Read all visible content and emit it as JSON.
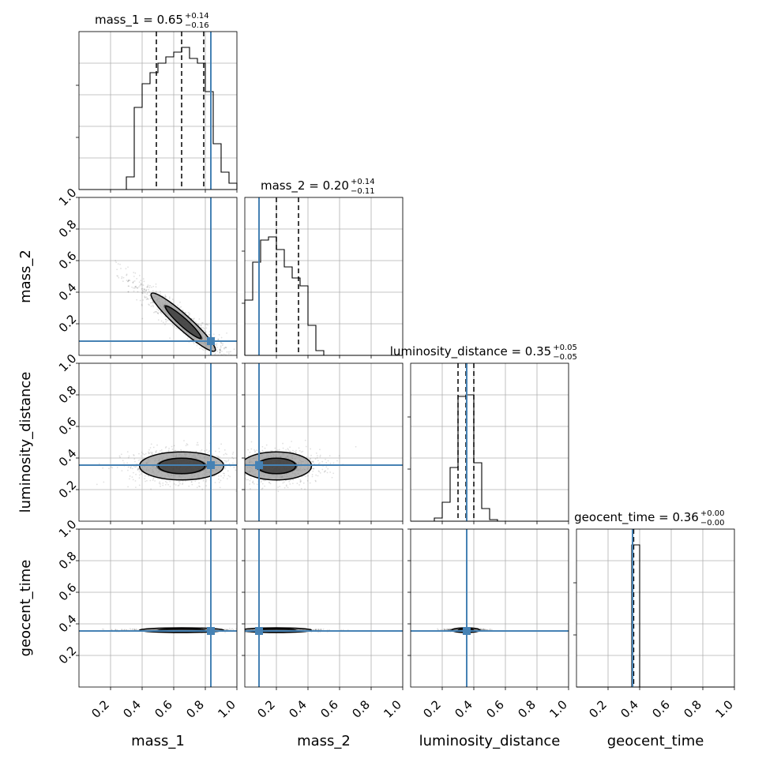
{
  "chart_data": {
    "type": "corner",
    "parameters": [
      "mass_1",
      "mass_2",
      "luminosity_distance",
      "geocent_time"
    ],
    "axis_labels": [
      "mass_1",
      "mass_2",
      "luminosity_distance",
      "geocent_time"
    ],
    "titles": [
      {
        "param": "mass_1",
        "text": "mass_1 = 0.65",
        "plus": "+0.14",
        "minus": "−0.16"
      },
      {
        "param": "mass_2",
        "text": "mass_2 = 0.20",
        "plus": "+0.14",
        "minus": "−0.11"
      },
      {
        "param": "luminosity_distance",
        "text": "luminosity_distance = 0.35",
        "plus": "+0.05",
        "minus": "−0.05"
      },
      {
        "param": "geocent_time",
        "text": "geocent_time = 0.36",
        "plus": "+0.00",
        "minus": "−0.00"
      }
    ],
    "axis_range": [
      0,
      1
    ],
    "x_tick_labels": [
      "0.2",
      "0.4",
      "0.6",
      "0.8",
      "1.0"
    ],
    "y_tick_labels": [
      "0.2",
      "0.4",
      "0.6",
      "0.8",
      "1.0"
    ],
    "grid": true,
    "truths": [
      0.835,
      0.09,
      0.355,
      0.355
    ],
    "truth_color": "#4682b4",
    "quantiles": [
      [
        0.49,
        0.65,
        0.79
      ],
      [
        0.09,
        0.2,
        0.34
      ],
      [
        0.3,
        0.35,
        0.4
      ],
      [
        0.357,
        0.36,
        0.362
      ]
    ],
    "histograms": [
      {
        "param": "mass_1",
        "bin_edges": [
          0.3,
          0.35,
          0.4,
          0.45,
          0.5,
          0.55,
          0.6,
          0.65,
          0.7,
          0.75,
          0.8,
          0.85,
          0.9,
          0.95,
          1.0
        ],
        "counts": [
          0.08,
          0.52,
          0.67,
          0.74,
          0.8,
          0.84,
          0.87,
          0.9,
          0.83,
          0.8,
          0.62,
          0.29,
          0.11,
          0.04
        ]
      },
      {
        "param": "mass_2",
        "bin_edges": [
          0.0,
          0.05,
          0.1,
          0.15,
          0.2,
          0.25,
          0.3,
          0.35,
          0.4,
          0.45,
          0.5
        ],
        "counts": [
          0.35,
          0.59,
          0.73,
          0.75,
          0.67,
          0.56,
          0.49,
          0.44,
          0.19,
          0.03
        ]
      },
      {
        "param": "luminosity_distance",
        "bin_edges": [
          0.15,
          0.2,
          0.25,
          0.3,
          0.35,
          0.4,
          0.45,
          0.5,
          0.55
        ],
        "counts": [
          0.02,
          0.12,
          0.34,
          0.79,
          0.8,
          0.37,
          0.08,
          0.01
        ]
      },
      {
        "param": "geocent_time",
        "bin_edges": [
          0.35,
          0.4
        ],
        "counts": [
          0.9
        ]
      }
    ],
    "scatter_panels": [
      {
        "x": "mass_1",
        "y": "mass_2",
        "correlation": -0.95,
        "center": [
          0.66,
          0.21
        ]
      },
      {
        "x": "mass_1",
        "y": "luminosity_distance",
        "correlation": 0.0,
        "center": [
          0.65,
          0.35
        ]
      },
      {
        "x": "mass_2",
        "y": "luminosity_distance",
        "correlation": 0.0,
        "center": [
          0.2,
          0.35
        ]
      },
      {
        "x": "mass_1",
        "y": "geocent_time",
        "correlation": 0.0,
        "center": [
          0.65,
          0.36
        ]
      },
      {
        "x": "mass_2",
        "y": "geocent_time",
        "correlation": 0.0,
        "center": [
          0.2,
          0.36
        ]
      },
      {
        "x": "luminosity_distance",
        "y": "geocent_time",
        "correlation": 0.0,
        "center": [
          0.35,
          0.36
        ]
      }
    ]
  }
}
